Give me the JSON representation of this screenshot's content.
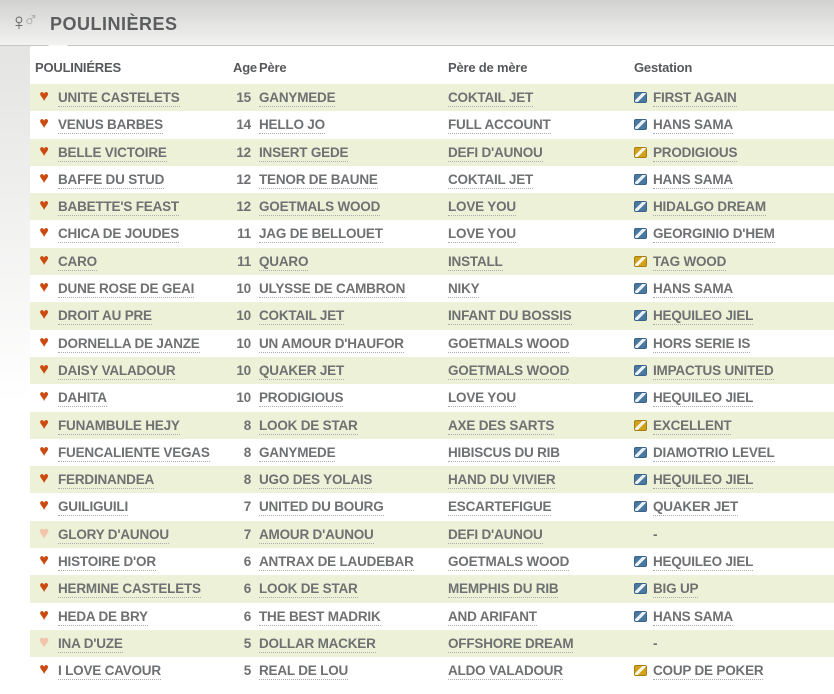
{
  "page_title": {
    "label": "POULINIÈRES"
  },
  "icons": {
    "title_icon": "venus-mars-icon",
    "favorite_icon": "heart-icon",
    "gestation_icon": "diagonal-stripe-badge-icon"
  },
  "colors": {
    "row_alt_green": "#edf1d8",
    "heart_full": "#cb4a10",
    "heart_empty": "#f3c3aa",
    "badge_blue": "#4a79a0",
    "badge_yellow": "#d2a11c",
    "text": "#6f7072",
    "header_text": "#57585a"
  },
  "table": {
    "columns": [
      "POULINIÉRES",
      "Age",
      "Père",
      "Père de mère",
      "Gestation"
    ],
    "rows": [
      {
        "favorite": "full",
        "name": "UNITE CASTELETS",
        "age": 15,
        "pere": "GANYMEDE",
        "pere_de_mere": "COKTAIL JET",
        "gestation": {
          "badge": "blue",
          "label": "FIRST AGAIN"
        }
      },
      {
        "favorite": "full",
        "name": "VENUS BARBES",
        "age": 14,
        "pere": "HELLO JO",
        "pere_de_mere": "FULL ACCOUNT",
        "gestation": {
          "badge": "blue",
          "label": "HANS SAMA"
        }
      },
      {
        "favorite": "full",
        "name": "BELLE VICTOIRE",
        "age": 12,
        "pere": "INSERT GEDE",
        "pere_de_mere": "DEFI D'AUNOU",
        "gestation": {
          "badge": "yellow",
          "label": "PRODIGIOUS"
        }
      },
      {
        "favorite": "full",
        "name": "BAFFE DU STUD",
        "age": 12,
        "pere": "TENOR DE BAUNE",
        "pere_de_mere": "COKTAIL JET",
        "gestation": {
          "badge": "blue",
          "label": "HANS SAMA"
        }
      },
      {
        "favorite": "full",
        "name": "BABETTE'S FEAST",
        "age": 12,
        "pere": "GOETMALS WOOD",
        "pere_de_mere": "LOVE YOU",
        "gestation": {
          "badge": "blue",
          "label": "HIDALGO DREAM"
        }
      },
      {
        "favorite": "full",
        "name": "CHICA DE JOUDES",
        "age": 11,
        "pere": "JAG DE BELLOUET",
        "pere_de_mere": "LOVE YOU",
        "gestation": {
          "badge": "blue",
          "label": "GEORGINIO D'HEM"
        }
      },
      {
        "favorite": "full",
        "name": "CARO",
        "age": 11,
        "pere": "QUARO",
        "pere_de_mere": "INSTALL",
        "gestation": {
          "badge": "yellow",
          "label": "TAG WOOD"
        }
      },
      {
        "favorite": "full",
        "name": "DUNE ROSE DE GEAI",
        "age": 10,
        "pere": "ULYSSE DE CAMBRON",
        "pere_de_mere": "NIKY",
        "gestation": {
          "badge": "blue",
          "label": "HANS SAMA"
        }
      },
      {
        "favorite": "full",
        "name": "DROIT AU PRE",
        "age": 10,
        "pere": "COKTAIL JET",
        "pere_de_mere": "INFANT DU BOSSIS",
        "gestation": {
          "badge": "blue",
          "label": "HEQUILEO JIEL"
        }
      },
      {
        "favorite": "full",
        "name": "DORNELLA DE JANZE",
        "age": 10,
        "pere": "UN AMOUR D'HAUFOR",
        "pere_de_mere": "GOETMALS WOOD",
        "gestation": {
          "badge": "blue",
          "label": "HORS SERIE IS"
        }
      },
      {
        "favorite": "full",
        "name": "DAISY VALADOUR",
        "age": 10,
        "pere": "QUAKER JET",
        "pere_de_mere": "GOETMALS WOOD",
        "gestation": {
          "badge": "blue",
          "label": "IMPACTUS UNITED"
        }
      },
      {
        "favorite": "full",
        "name": "DAHITA",
        "age": 10,
        "pere": "PRODIGIOUS",
        "pere_de_mere": "LOVE YOU",
        "gestation": {
          "badge": "blue",
          "label": "HEQUILEO JIEL"
        }
      },
      {
        "favorite": "full",
        "name": "FUNAMBULE HEJY",
        "age": 8,
        "pere": "LOOK DE STAR",
        "pere_de_mere": "AXE DES SARTS",
        "gestation": {
          "badge": "yellow",
          "label": "EXCELLENT"
        }
      },
      {
        "favorite": "full",
        "name": "FUENCALIENTE VEGAS",
        "age": 8,
        "pere": "GANYMEDE",
        "pere_de_mere": "HIBISCUS DU RIB",
        "gestation": {
          "badge": "blue",
          "label": "DIAMOTRIO LEVEL"
        }
      },
      {
        "favorite": "full",
        "name": "FERDINANDEA",
        "age": 8,
        "pere": "UGO DES YOLAIS",
        "pere_de_mere": "HAND DU VIVIER",
        "gestation": {
          "badge": "blue",
          "label": "HEQUILEO JIEL"
        }
      },
      {
        "favorite": "full",
        "name": "GUILIGUILI",
        "age": 7,
        "pere": "UNITED DU BOURG",
        "pere_de_mere": "ESCARTEFIGUE",
        "gestation": {
          "badge": "blue",
          "label": "QUAKER JET"
        }
      },
      {
        "favorite": "empty",
        "name": "GLORY D'AUNOU",
        "age": 7,
        "pere": "AMOUR D'AUNOU",
        "pere_de_mere": "DEFI D'AUNOU",
        "gestation": {
          "badge": "none",
          "label": "-"
        }
      },
      {
        "favorite": "full",
        "name": "HISTOIRE D'OR",
        "age": 6,
        "pere": "ANTRAX DE LAUDEBAR",
        "pere_de_mere": "GOETMALS WOOD",
        "gestation": {
          "badge": "blue",
          "label": "HEQUILEO JIEL"
        }
      },
      {
        "favorite": "full",
        "name": "HERMINE CASTELETS",
        "age": 6,
        "pere": "LOOK DE STAR",
        "pere_de_mere": "MEMPHIS DU RIB",
        "gestation": {
          "badge": "blue",
          "label": "BIG UP"
        }
      },
      {
        "favorite": "full",
        "name": "HEDA DE BRY",
        "age": 6,
        "pere": "THE BEST MADRIK",
        "pere_de_mere": "AND ARIFANT",
        "gestation": {
          "badge": "blue",
          "label": "HANS SAMA"
        }
      },
      {
        "favorite": "empty",
        "name": "INA D'UZE",
        "age": 5,
        "pere": "DOLLAR MACKER",
        "pere_de_mere": "OFFSHORE DREAM",
        "gestation": {
          "badge": "none",
          "label": "-"
        }
      },
      {
        "favorite": "full",
        "name": "I LOVE CAVOUR",
        "age": 5,
        "pere": "REAL DE LOU",
        "pere_de_mere": "ALDO VALADOUR",
        "gestation": {
          "badge": "yellow",
          "label": "COUP DE POKER"
        }
      }
    ]
  }
}
